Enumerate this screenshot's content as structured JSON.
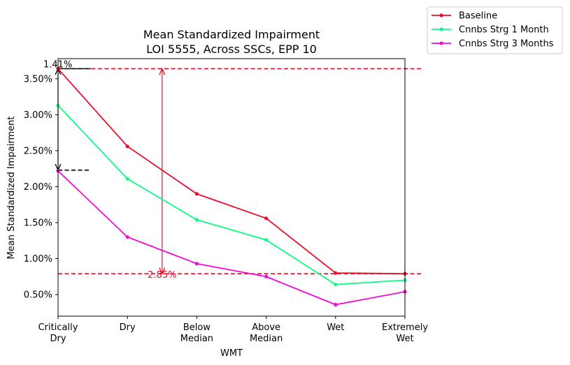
{
  "chart_data": {
    "type": "line",
    "title": [
      "Mean Standardized Impairment",
      "LOI 5555, Across SSCs, EPP 10"
    ],
    "xlabel": "WMT",
    "ylabel": "Mean Standardized Impairment",
    "categories": [
      [
        "Critically",
        "Dry"
      ],
      [
        "Dry"
      ],
      [
        "Below",
        "Median"
      ],
      [
        "Above",
        "Median"
      ],
      [
        "Wet"
      ],
      [
        "Extremely",
        "Wet"
      ]
    ],
    "ylim": [
      0.2,
      3.78
    ],
    "yticks": [
      0.5,
      1.0,
      1.5,
      2.0,
      2.5,
      3.0,
      3.5
    ],
    "ytick_labels": [
      "0.50%",
      "1.00%",
      "1.50%",
      "2.00%",
      "2.50%",
      "3.00%",
      "3.50%"
    ],
    "grid": false,
    "legend_position": "outside-top-right",
    "series": [
      {
        "name": "Baseline",
        "color": "#e8102a",
        "values": [
          3.64,
          2.56,
          1.9,
          1.56,
          0.8,
          0.79
        ]
      },
      {
        "name": "Cnnbs Strg 1 Month",
        "color": "#0dfc82",
        "values": [
          3.13,
          2.11,
          1.54,
          1.26,
          0.64,
          0.7
        ]
      },
      {
        "name": "Cnnbs Strg 3 Months",
        "color": "#f40ad4",
        "values": [
          2.22,
          1.3,
          0.93,
          0.75,
          0.36,
          0.54
        ]
      }
    ],
    "annotations": {
      "hlines": [
        {
          "y": 3.64,
          "color": "#e8102a",
          "style": "dashed",
          "span": "full"
        },
        {
          "y": 0.79,
          "color": "#e8102a",
          "style": "dashed",
          "span": "full"
        },
        {
          "y": 2.23,
          "color": "#000000",
          "style": "dashed",
          "span": "short"
        }
      ],
      "black_range": {
        "from": 3.64,
        "to": 2.23,
        "label": "1.41%",
        "color": "#000000"
      },
      "red_range": {
        "from": 3.64,
        "to": 0.79,
        "label": "2.85%",
        "color": "#e8102a"
      }
    }
  }
}
